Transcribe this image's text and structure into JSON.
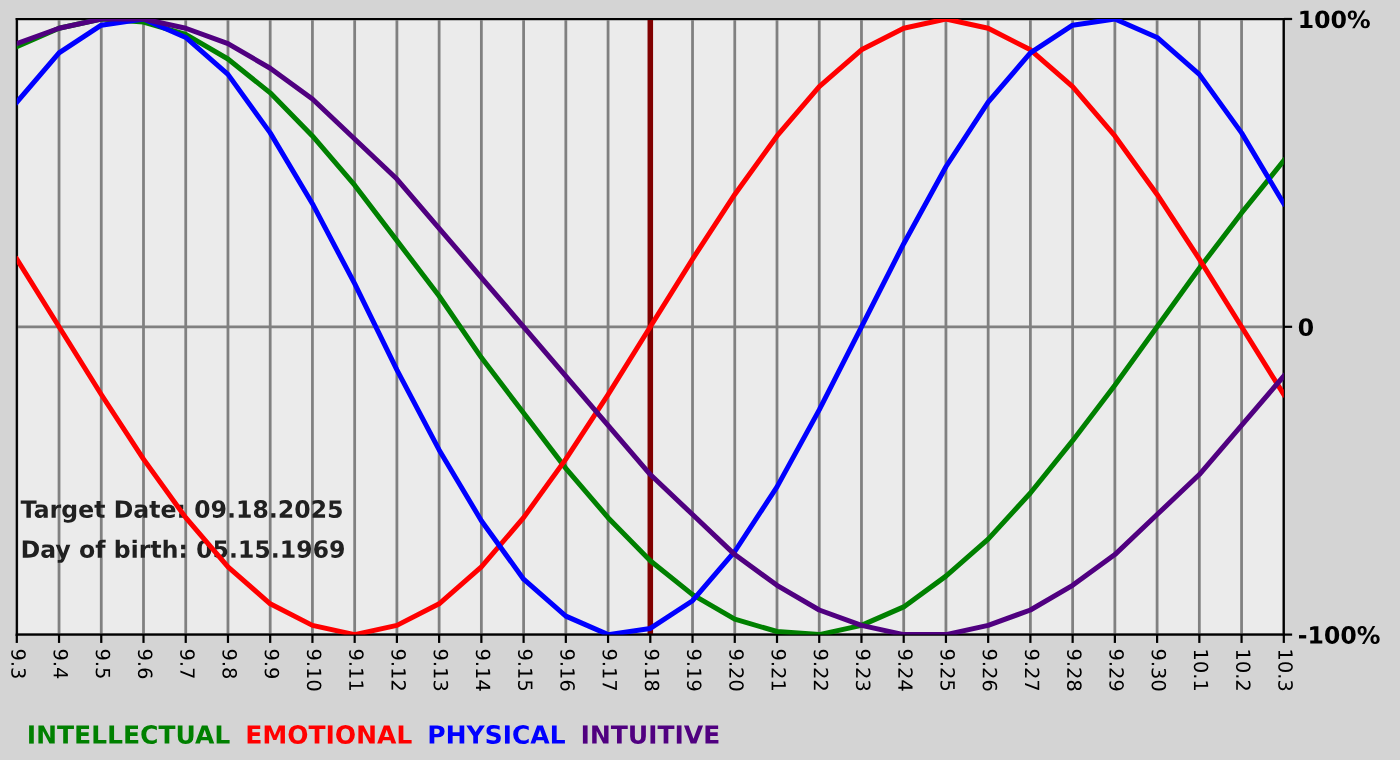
{
  "chart_data": {
    "type": "line",
    "categories": [
      "9.3",
      "9.4",
      "9.5",
      "9.6",
      "9.7",
      "9.8",
      "9.9",
      "9.10",
      "9.11",
      "9.12",
      "9.13",
      "9.14",
      "9.15",
      "9.16",
      "9.17",
      "9.18",
      "9.19",
      "9.20",
      "9.21",
      "9.22",
      "9.23",
      "9.24",
      "9.25",
      "9.26",
      "9.27",
      "9.28",
      "9.29",
      "9.30",
      "10.1",
      "10.2",
      "10.3"
    ],
    "series": [
      {
        "name": "INTELLECTUAL",
        "color": "#008000",
        "values": [
          91,
          97,
          100,
          99,
          95,
          87,
          76,
          62,
          46,
          28,
          10,
          -10,
          -28,
          -46,
          -62,
          -76,
          -87,
          -95,
          -99,
          -100,
          -97,
          -91,
          -81,
          -69,
          -54,
          -37,
          -19,
          0,
          19,
          37,
          54
        ]
      },
      {
        "name": "EMOTIONAL",
        "color": "#ff0000",
        "values": [
          22,
          0,
          -22,
          -43,
          -62,
          -78,
          -90,
          -97,
          -100,
          -97,
          -90,
          -78,
          -62,
          -43,
          -22,
          0,
          22,
          43,
          62,
          78,
          90,
          97,
          100,
          97,
          90,
          78,
          62,
          43,
          22,
          0,
          -22
        ]
      },
      {
        "name": "PHYSICAL",
        "color": "#0000ff",
        "values": [
          73,
          89,
          98,
          100,
          94,
          82,
          63,
          40,
          14,
          -14,
          -40,
          -63,
          -82,
          -94,
          -100,
          -98,
          -89,
          -73,
          -52,
          -27,
          0,
          27,
          52,
          73,
          89,
          98,
          100,
          94,
          82,
          63,
          40
        ]
      },
      {
        "name": "INTUITIVE",
        "color": "#500080",
        "values": [
          92,
          97,
          100,
          100,
          97,
          92,
          84,
          74,
          61,
          48,
          32,
          16,
          0,
          -16,
          -32,
          -48,
          -61,
          -74,
          -84,
          -92,
          -97,
          -100,
          -100,
          -97,
          -92,
          -84,
          -74,
          -61,
          -48,
          -32,
          -16
        ]
      }
    ],
    "ylim": [
      -100,
      100
    ],
    "yticks": [
      {
        "value": 100,
        "label": "100%"
      },
      0,
      {
        "value": -100,
        "label": "-100%"
      }
    ],
    "grid": true,
    "legend": "bottom",
    "marker": "none",
    "line_style": "solid",
    "ref_lines": [
      {
        "axis": "x",
        "value": "9.18",
        "color": "#800000"
      }
    ],
    "annotations": [
      "Target Date: 09.18.2025",
      "Day of birth: 05.15.1969"
    ]
  }
}
